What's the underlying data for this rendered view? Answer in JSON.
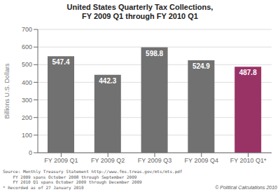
{
  "chart_data": {
    "type": "bar",
    "title": "United States Quarterly Tax Collections,\nFY 2009 Q1 through FY 2010 Q1",
    "categories": [
      "FY 2009 Q1",
      "FY 2009 Q2",
      "FY 2009 Q3",
      "FY 2009 Q4",
      "FY 2010 Q1*"
    ],
    "values": [
      547.4,
      442.3,
      598.8,
      524.9,
      487.8
    ],
    "colors": [
      "#717171",
      "#717171",
      "#717171",
      "#717171",
      "#993366"
    ],
    "ylabel": "Billions U.S. Dollars",
    "ylim": [
      0,
      700
    ],
    "yticks": [
      0,
      100,
      200,
      300,
      400,
      500,
      600,
      700
    ],
    "grid": true,
    "data_labels": true,
    "annotations": [
      "Source: Monthly Treasury Statement http://www.fms.treas.gov/mts/mts.pdf",
      "    FY 2009 spans October 2008 through September 2009",
      "    FY 2010 Q1 spans October 2009 through December 2009",
      "* Recorded as of 27 January 2010",
      "© Political Calculations 2010"
    ]
  }
}
